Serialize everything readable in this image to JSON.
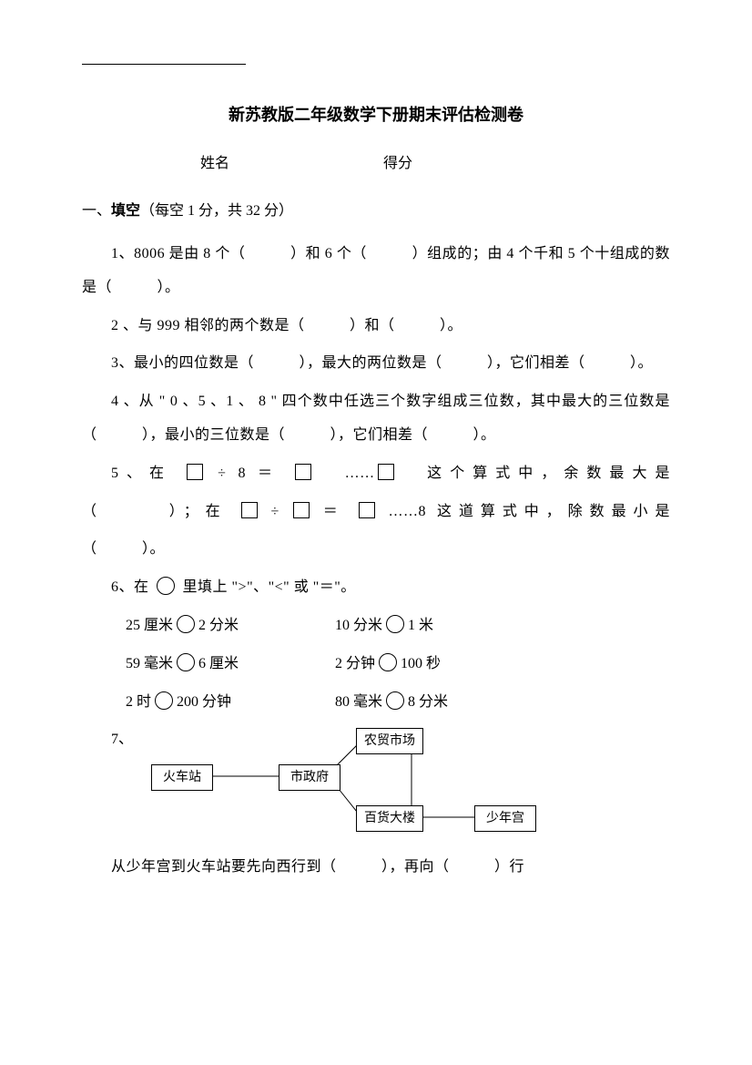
{
  "title": "新苏教版二年级数学下册期末评估检测卷",
  "name_label": "姓名",
  "score_label": "得分",
  "section1": {
    "header_prefix": "一、",
    "header_bold": "填空",
    "header_suffix": "（每空 1 分，共 32 分）"
  },
  "q1": "1、8006 是由 8 个（　　　）和 6 个（　　　）组成的；由 4 个千和 5 个十组成的数是（　　　）。",
  "q2": "2 、与 999 相邻的两个数是（　　　）和（　　　）。",
  "q3": "3、最小的四位数是（　　　），最大的两位数是（　　　），它们相差（　　　）。",
  "q4": "4 、从 \" 0 、5 、1 、 8 \" 四个数中任选三个数字组成三位数，其中最大的三位数是（　　　），最小的三位数是（　　　），它们相差（　　　）。",
  "q5": {
    "part1_pre": "5、在 ",
    "part1_mid1": " ÷ 8 ＝ ",
    "part1_mid2": "　……",
    "part1_after": "　这个算式中，余数最大是",
    "line2_pre": "（　　　）；在 ",
    "line2_mid1": " ÷ ",
    "line2_mid2": " ＝ ",
    "line2_after": " ……8 这道算式中，除数最小是",
    "line3": "（　　　）。"
  },
  "q6": {
    "header_pre": "6、在 ",
    "header_post": " 里填上 \">\"、\"<\" 或 \"＝\"。",
    "rows": [
      {
        "left_a": "25 厘米",
        "left_b": "2 分米",
        "right_a": "10 分米",
        "right_b": "1 米"
      },
      {
        "left_a": "59 毫米",
        "left_b": "6 厘米",
        "right_a": "2 分钟",
        "right_b": "100 秒"
      },
      {
        "left_a": "2 时",
        "left_b": "200 分钟",
        "right_a": "80 毫米",
        "right_b": "8 分米"
      }
    ]
  },
  "q7": {
    "label": "7、",
    "nodes": {
      "train": "火车站",
      "gov": "市政府",
      "market": "农贸市场",
      "mall": "百货大楼",
      "youth": "少年宫"
    },
    "lines_color": "#000000"
  },
  "q7_text": "从少年宫到火车站要先向西行到（　　　），再向（　　　）行"
}
